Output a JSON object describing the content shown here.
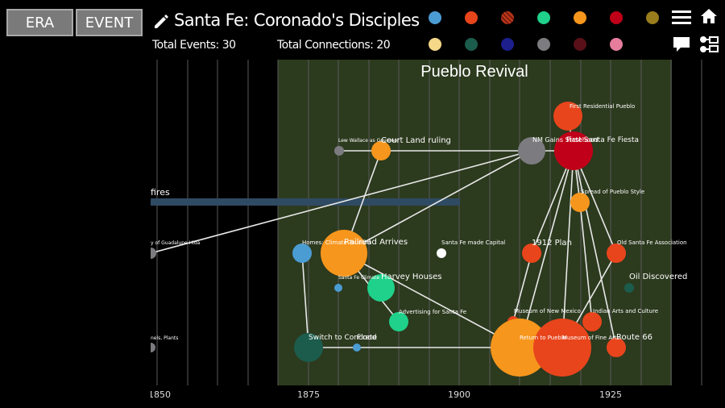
{
  "header": {
    "era_button": "ERA",
    "event_button": "EVENT",
    "title": "Santa Fe: Coronado's Disciples",
    "stats": {
      "total_events": "Total Events: 30",
      "total_connections": "Total Connections: 20"
    }
  },
  "palette": [
    {
      "color": "#4b9cd3"
    },
    {
      "color": "#e8451c"
    },
    {
      "color": "#c0391b"
    },
    {
      "color": "#1fd18a"
    },
    {
      "color": "#f7961c"
    },
    {
      "color": "#c00018"
    },
    {
      "color": "#9a7d1c"
    },
    {
      "color": "#f5d888"
    },
    {
      "color": "#1c5c4c"
    },
    {
      "color": "#1c1f8c"
    },
    {
      "color": "#7c7c80"
    },
    {
      "color": "#5a1018"
    },
    {
      "color": "#e67d9c"
    }
  ],
  "icons": {
    "menu": "menu-icon",
    "home": "home-icon",
    "comment": "comment-icon",
    "network": "network-icon",
    "edit": "pencil-icon"
  },
  "timeline": {
    "era_label": "Pueblo Revival",
    "era_color": "#2c3a1e",
    "axis_ticks": [
      {
        "year": 1850,
        "label": "1850"
      },
      {
        "year": 1875,
        "label": "1875"
      },
      {
        "year": 1900,
        "label": "1900"
      },
      {
        "year": 1925,
        "label": "1925"
      }
    ],
    "bar": {
      "label": "fires",
      "color": "#2f4a63"
    },
    "events": [
      {
        "label": "First Residential Pueblo",
        "color": "#e8451c",
        "size": "lg"
      },
      {
        "label": "NM Gains Statehood",
        "color": "#7c7c80",
        "size": "md"
      },
      {
        "label": "First Santa Fe Fiesta",
        "color": "#c00018",
        "size": "lg"
      },
      {
        "label": "Lew Wallace as Governor",
        "color": "#7c7c80",
        "size": "xs"
      },
      {
        "label": "Court Land ruling",
        "color": "#f7961c",
        "size": "sm"
      },
      {
        "label": "Spread of Pueblo Style",
        "color": "#f7961c",
        "size": "sm"
      },
      {
        "label": "Homes: Climate Tourism",
        "color": "#4b9cd3",
        "size": "sm"
      },
      {
        "label": "Railroad Arrives",
        "color": "#f7961c",
        "size": "lg"
      },
      {
        "label": "Santa Fe made Capital",
        "color": "#ffffff",
        "size": "xs"
      },
      {
        "label": "1912 Plan",
        "color": "#e8451c",
        "size": "sm"
      },
      {
        "label": "Old Santa Fe Association",
        "color": "#e8451c",
        "size": "sm"
      },
      {
        "label": "Santa Fe Climate",
        "color": "#4b9cd3",
        "size": "xs"
      },
      {
        "label": "Harvey Houses",
        "color": "#1fd18a",
        "size": "md"
      },
      {
        "label": "Oil Discovered",
        "color": "#1c5c4c",
        "size": "xs"
      },
      {
        "label": "Advertising for Santa Fe",
        "color": "#1fd18a",
        "size": "sm"
      },
      {
        "label": "Museum of New Mexico",
        "color": "#e8451c",
        "size": "xs"
      },
      {
        "label": "Indian Arts and Culture",
        "color": "#e8451c",
        "size": "sm"
      },
      {
        "label": "Switch to Concrete",
        "color": "#1c5c4c",
        "size": "md"
      },
      {
        "label": "Flood",
        "color": "#4b9cd3",
        "size": "xs"
      },
      {
        "label": "Return to Pueblo",
        "color": "#f7961c",
        "size": "xl"
      },
      {
        "label": "Museum of Fine Arts",
        "color": "#e8451c",
        "size": "xl"
      },
      {
        "label": "Route 66",
        "color": "#e8451c",
        "size": "sm"
      },
      {
        "label": "y of Guadalupe Hida",
        "color": "#7c7c80",
        "size": "xs"
      },
      {
        "label": "nels, Plants",
        "color": "#7c7c80",
        "size": "xs"
      }
    ]
  }
}
